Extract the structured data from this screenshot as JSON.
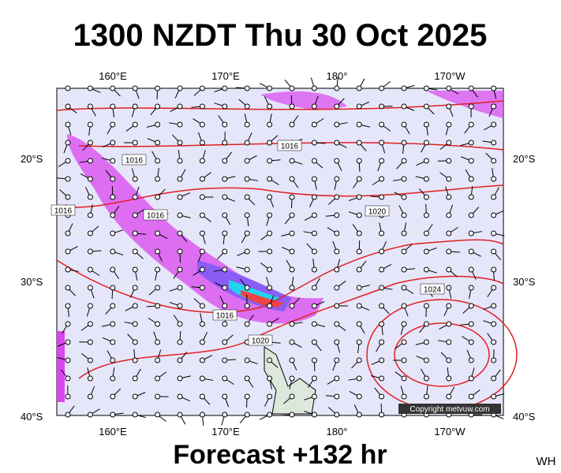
{
  "header": {
    "title": "1300 NZDT Thu 30 Oct 2025"
  },
  "map": {
    "lon_labels": [
      "160°E",
      "170°E",
      "180°",
      "170°W"
    ],
    "lat_labels_left": [
      "20°S",
      "30°S",
      "40°S"
    ],
    "lat_labels_right": [
      "20°S",
      "30°S",
      "40°S"
    ],
    "isobar_labels": [
      "1016",
      "1016",
      "1016",
      "1016",
      "1016",
      "1020",
      "1020",
      "1024"
    ],
    "copyright": "Copyright metvuw.com"
  },
  "footer": {
    "forecast": "Forecast +132 hr",
    "corner": "WH"
  }
}
